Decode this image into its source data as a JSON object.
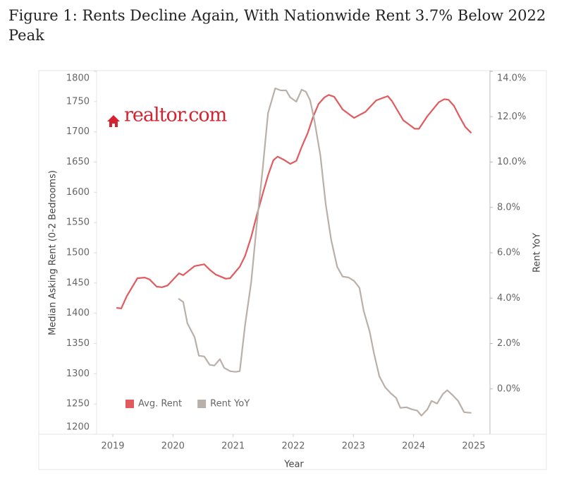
{
  "chart_data": {
    "type": "line",
    "title": "Figure 1: Rents Decline Again, With Nationwide Rent 3.7% Below 2022 Peak",
    "logo": "realtor.com",
    "x_label": "Year",
    "y_label": "Median Asking Rent (0-2 Bedrooms)",
    "y2_label": "Rent YoY",
    "xlim": [
      2018.73,
      2025.27
    ],
    "xticks": [
      2019,
      2020,
      2021,
      2022,
      2023,
      2024,
      2025
    ],
    "ylim": [
      1200,
      1800
    ],
    "yticks": [
      1200,
      1250,
      1300,
      1350,
      1400,
      1450,
      1500,
      1550,
      1600,
      1650,
      1700,
      1750,
      1800
    ],
    "y2lim": [
      -2,
      14
    ],
    "y2ticks": [
      {
        "value": 0,
        "label": "0.0%"
      },
      {
        "value": 2,
        "label": "2.0%"
      },
      {
        "value": 4,
        "label": "4.0%"
      },
      {
        "value": 6,
        "label": "6.0%"
      },
      {
        "value": 8,
        "label": "8.0%"
      },
      {
        "value": 10,
        "label": "10.0%"
      },
      {
        "value": 12,
        "label": "12.0%"
      },
      {
        "value": 14,
        "label": "14.0%"
      }
    ],
    "grid": false,
    "legend": "lower left",
    "series": [
      {
        "name": "Avg. Rent",
        "color": "#e05a5e",
        "x": [
          2019.06,
          2019.14,
          2019.23,
          2019.41,
          2019.53,
          2019.61,
          2019.73,
          2019.82,
          2019.91,
          2020.1,
          2020.17,
          2020.36,
          2020.52,
          2020.62,
          2020.71,
          2020.88,
          2020.95,
          2021.11,
          2021.2,
          2021.3,
          2021.39,
          2021.49,
          2021.58,
          2021.67,
          2021.74,
          2021.84,
          2021.95,
          2022.05,
          2022.14,
          2022.24,
          2022.33,
          2022.42,
          2022.52,
          2022.59,
          2022.68,
          2022.82,
          2023.01,
          2023.2,
          2023.38,
          2023.57,
          2023.64,
          2023.83,
          2024.02,
          2024.09,
          2024.23,
          2024.42,
          2024.51,
          2024.58,
          2024.67,
          2024.77,
          2024.86,
          2024.96
        ],
        "values": [
          1409,
          1408,
          1428,
          1458,
          1459,
          1456,
          1444,
          1443,
          1446,
          1466,
          1463,
          1478,
          1481,
          1471,
          1464,
          1457,
          1458,
          1477,
          1495,
          1526,
          1561,
          1597,
          1628,
          1653,
          1659,
          1654,
          1647,
          1652,
          1675,
          1698,
          1725,
          1746,
          1757,
          1761,
          1758,
          1737,
          1723,
          1733,
          1752,
          1759,
          1751,
          1719,
          1705,
          1705,
          1726,
          1749,
          1754,
          1753,
          1743,
          1724,
          1708,
          1698
        ]
      },
      {
        "name": "Rent YoY",
        "color": "#b9b0a9",
        "axis": "y2",
        "x": [
          2020.09,
          2020.17,
          2020.24,
          2020.36,
          2020.43,
          2020.52,
          2020.61,
          2020.69,
          2020.78,
          2020.85,
          2020.95,
          2021.04,
          2021.11,
          2021.2,
          2021.3,
          2021.39,
          2021.49,
          2021.58,
          2021.7,
          2021.79,
          2021.88,
          2021.95,
          2022.05,
          2022.14,
          2022.21,
          2022.28,
          2022.35,
          2022.45,
          2022.54,
          2022.63,
          2022.73,
          2022.82,
          2022.92,
          2023.01,
          2023.1,
          2023.17,
          2023.27,
          2023.34,
          2023.43,
          2023.53,
          2023.62,
          2023.71,
          2023.78,
          2023.88,
          2023.97,
          2024.06,
          2024.13,
          2024.23,
          2024.3,
          2024.39,
          2024.49,
          2024.56,
          2024.65,
          2024.74,
          2024.84,
          2024.96
        ],
        "values": [
          3.98,
          3.83,
          2.89,
          2.27,
          1.46,
          1.43,
          1.06,
          1.03,
          1.31,
          0.93,
          0.78,
          0.75,
          0.78,
          2.83,
          4.7,
          7.19,
          9.67,
          12.16,
          13.25,
          13.16,
          13.16,
          12.85,
          12.66,
          13.19,
          13.1,
          12.72,
          11.85,
          10.3,
          8.12,
          6.56,
          5.38,
          4.95,
          4.91,
          4.76,
          4.45,
          3.45,
          2.52,
          1.59,
          0.56,
          0.06,
          -0.19,
          -0.4,
          -0.84,
          -0.81,
          -0.9,
          -0.96,
          -1.18,
          -0.9,
          -0.53,
          -0.65,
          -0.22,
          -0.06,
          -0.28,
          -0.53,
          -1.03,
          -1.06
        ]
      }
    ]
  }
}
